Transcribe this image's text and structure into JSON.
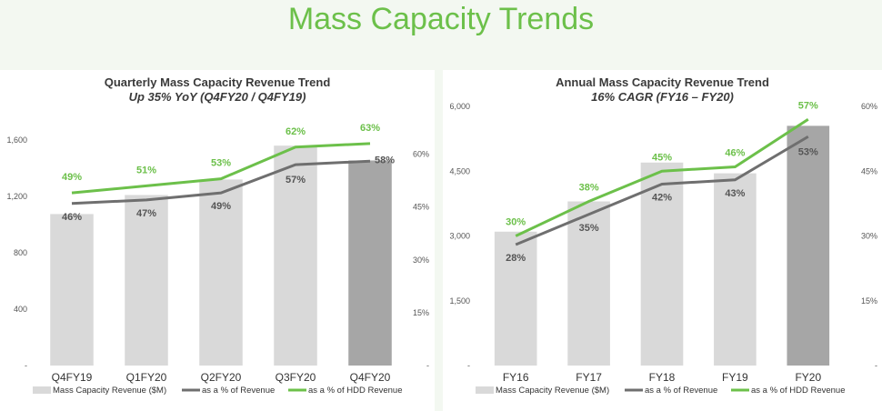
{
  "page": {
    "title": "Mass Capacity Trends"
  },
  "chart_data": [
    {
      "type": "bar",
      "title": "Quarterly Mass Capacity Revenue Trend",
      "subtitle": "Up 35% YoY (Q4FY20 / Q4FY19)",
      "categories": [
        "Q4FY19",
        "Q1FY20",
        "Q2FY20",
        "Q3FY20",
        "Q4FY20"
      ],
      "ylim": [
        0,
        1800
      ],
      "y_ticks": [
        0,
        400,
        800,
        1200,
        1600
      ],
      "y_tick_labels": [
        "-",
        "400",
        "800",
        "1,200",
        "1,600"
      ],
      "y2lim": [
        0,
        0.72
      ],
      "y2_ticks": [
        0,
        0.15,
        0.3,
        0.45,
        0.6
      ],
      "y2_tick_labels": [
        "-",
        "15%",
        "30%",
        "45%",
        "60%"
      ],
      "series": [
        {
          "name": "Mass Capacity Revenue ($M)",
          "kind": "bar",
          "axis": "left",
          "values": [
            1075,
            1210,
            1320,
            1560,
            1455
          ],
          "colors": [
            "#d9d9d9",
            "#d9d9d9",
            "#d9d9d9",
            "#d9d9d9",
            "#a6a6a6"
          ]
        },
        {
          "name": "as a % of Revenue",
          "kind": "line",
          "axis": "right",
          "color": "#6f6f6f",
          "values": [
            0.46,
            0.47,
            0.49,
            0.57,
            0.58
          ],
          "labels": [
            "46%",
            "47%",
            "49%",
            "57%",
            "58%"
          ]
        },
        {
          "name": "as a % of HDD Revenue",
          "kind": "line",
          "axis": "right",
          "color": "#6cc04a",
          "values": [
            0.49,
            0.51,
            0.53,
            0.62,
            0.63
          ],
          "labels": [
            "49%",
            "51%",
            "53%",
            "62%",
            "63%"
          ]
        }
      ],
      "legend": "bottom"
    },
    {
      "type": "bar",
      "title": "Annual Mass Capacity Revenue Trend",
      "subtitle": "16% CAGR (FY16 – FY20)",
      "categories": [
        "FY16",
        "FY17",
        "FY18",
        "FY19",
        "FY20"
      ],
      "ylim": [
        0,
        6000
      ],
      "y_ticks": [
        0,
        1500,
        3000,
        4500,
        6000
      ],
      "y_tick_labels": [
        "-",
        "1,500",
        "3,000",
        "4,500",
        "6,000"
      ],
      "y2lim": [
        0,
        0.6
      ],
      "y2_ticks": [
        0,
        0.15,
        0.3,
        0.45,
        0.6
      ],
      "y2_tick_labels": [
        "-",
        "15%",
        "30%",
        "45%",
        "60%"
      ],
      "series": [
        {
          "name": "Mass Capacity Revenue ($M)",
          "kind": "bar",
          "axis": "left",
          "values": [
            3100,
            3800,
            4700,
            4450,
            5550
          ],
          "colors": [
            "#d9d9d9",
            "#d9d9d9",
            "#d9d9d9",
            "#d9d9d9",
            "#a6a6a6"
          ]
        },
        {
          "name": "as a % of Revenue",
          "kind": "line",
          "axis": "right",
          "color": "#6f6f6f",
          "values": [
            0.28,
            0.35,
            0.42,
            0.43,
            0.53
          ],
          "labels": [
            "28%",
            "35%",
            "42%",
            "43%",
            "53%"
          ]
        },
        {
          "name": "as a % of HDD Revenue",
          "kind": "line",
          "axis": "right",
          "color": "#6cc04a",
          "values": [
            0.3,
            0.38,
            0.45,
            0.46,
            0.57
          ],
          "labels": [
            "30%",
            "38%",
            "45%",
            "46%",
            "57%"
          ]
        }
      ],
      "legend": "bottom"
    }
  ]
}
